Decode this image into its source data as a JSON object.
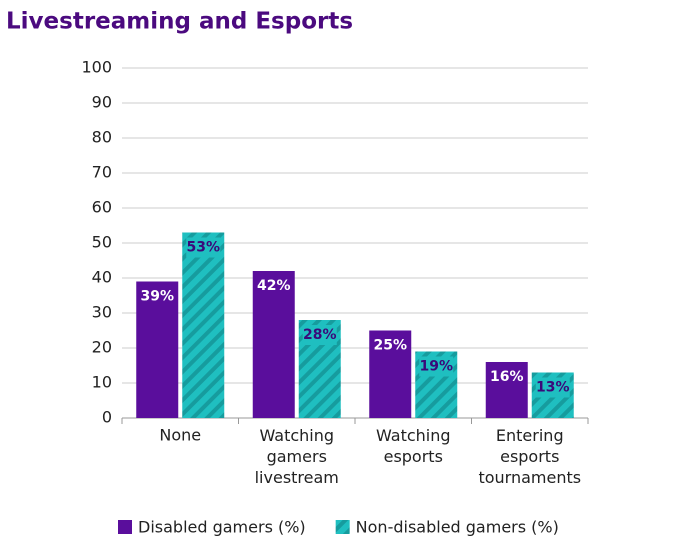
{
  "chart_data": {
    "type": "bar",
    "title": "Livestreaming and Esports",
    "categories": [
      "None",
      "Watching gamers livestream",
      "Watching esports",
      "Entering esports tournaments"
    ],
    "series": [
      {
        "name": "Disabled gamers (%)",
        "color": "#5a0e9c",
        "values": [
          39,
          42,
          25,
          16
        ],
        "value_labels": [
          "39%",
          "42%",
          "25%",
          "16%"
        ]
      },
      {
        "name": "Non-disabled gamers (%)",
        "color": "#1fbfc0",
        "values": [
          53,
          28,
          19,
          13
        ],
        "value_labels": [
          "53%",
          "28%",
          "19%",
          "13%"
        ],
        "hatch": true
      }
    ],
    "ylim": [
      0,
      100
    ],
    "yticks": [
      0,
      10,
      20,
      30,
      40,
      50,
      60,
      70,
      80,
      90,
      100
    ],
    "grid": true
  }
}
